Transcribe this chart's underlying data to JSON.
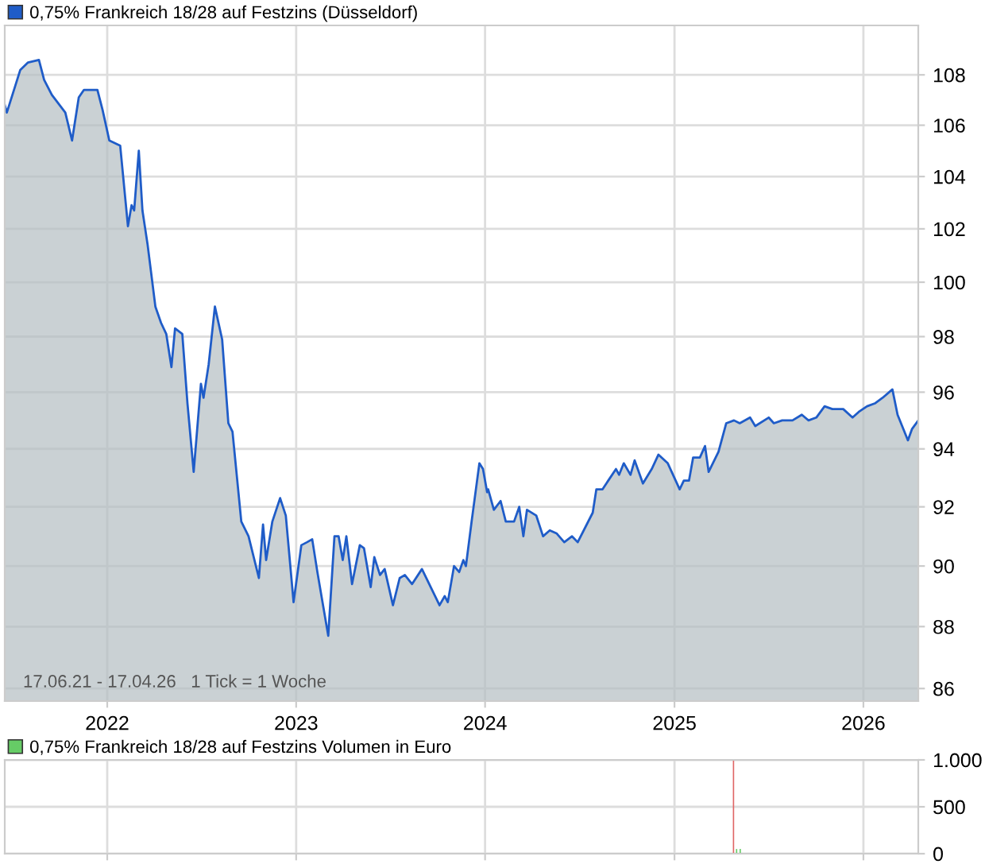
{
  "chart_data": [
    {
      "type": "area",
      "log": true,
      "grid": true,
      "legend": "top left",
      "xlim": [
        "2021-06-17",
        "2026-04-17"
      ],
      "xticks": [
        "2022",
        "2023",
        "2024",
        "2025",
        "2026"
      ],
      "ylim": [
        85.6,
        110
      ],
      "yticks": [
        86,
        88,
        90,
        92,
        94,
        96,
        98,
        100,
        102,
        104,
        106,
        108
      ],
      "annotations": [
        "17.06.21 - 17.04.26   1 Tick = 1 Woche"
      ],
      "series": [
        {
          "name": "0,75% Frankreich 18/28 auf Festzins (Düsseldorf)",
          "color": "#1f5cc8",
          "x": [
            "2021-06-17",
            "2021-06-21",
            "2021-07-17",
            "2021-08-01",
            "2021-08-22",
            "2021-09-01",
            "2021-09-16",
            "2021-10-12",
            "2021-10-25",
            "2021-11-07",
            "2021-11-17",
            "2021-12-13",
            "2021-12-23",
            "2022-01-05",
            "2022-01-26",
            "2022-02-10",
            "2022-02-17",
            "2022-02-22",
            "2022-03-03",
            "2022-03-10",
            "2022-03-20",
            "2022-04-04",
            "2022-04-15",
            "2022-04-25",
            "2022-05-05",
            "2022-05-12",
            "2022-05-26",
            "2022-06-05",
            "2022-06-17",
            "2022-07-01",
            "2022-07-06",
            "2022-07-16",
            "2022-07-28",
            "2022-08-11",
            "2022-08-23",
            "2022-08-31",
            "2022-09-17",
            "2022-10-01",
            "2022-10-21",
            "2022-10-29",
            "2022-11-04",
            "2022-11-16",
            "2022-12-01",
            "2022-12-12",
            "2022-12-27",
            "2023-01-11",
            "2023-01-22",
            "2023-02-01",
            "2023-02-11",
            "2023-03-04",
            "2023-03-16",
            "2023-03-24",
            "2023-04-01",
            "2023-04-08",
            "2023-04-19",
            "2023-05-04",
            "2023-05-12",
            "2023-05-25",
            "2023-06-01",
            "2023-06-12",
            "2023-06-21",
            "2023-07-07",
            "2023-07-20",
            "2023-07-30",
            "2023-08-13",
            "2023-09-01",
            "2023-10-05",
            "2023-10-15",
            "2023-10-21",
            "2023-11-02",
            "2023-11-12",
            "2023-11-20",
            "2023-11-25",
            "2023-12-06",
            "2023-12-21",
            "2023-12-28",
            "2024-01-05",
            "2024-01-07",
            "2024-01-18",
            "2024-01-31",
            "2024-02-10",
            "2024-02-26",
            "2024-03-07",
            "2024-03-15",
            "2024-03-22",
            "2024-04-09",
            "2024-04-22",
            "2024-05-05",
            "2024-05-18",
            "2024-06-02",
            "2024-06-17",
            "2024-06-28",
            "2024-07-27",
            "2024-08-03",
            "2024-08-15",
            "2024-08-26",
            "2024-09-10",
            "2024-09-16",
            "2024-09-25",
            "2024-10-08",
            "2024-10-16",
            "2024-11-01",
            "2024-11-18",
            "2024-12-01",
            "2024-12-19",
            "2025-01-11",
            "2025-01-19",
            "2025-01-29",
            "2025-02-06",
            "2025-02-19",
            "2025-03-01",
            "2025-03-08",
            "2025-03-27",
            "2025-04-11",
            "2025-04-26",
            "2025-05-07",
            "2025-05-27",
            "2025-06-06",
            "2025-07-02",
            "2025-07-12",
            "2025-07-28",
            "2025-08-17",
            "2025-09-04",
            "2025-09-17",
            "2025-10-02",
            "2025-10-18",
            "2025-11-02",
            "2025-11-23",
            "2025-12-11",
            "2025-12-23",
            "2026-01-08",
            "2026-01-23",
            "2026-02-07",
            "2026-02-26",
            "2026-03-08",
            "2026-03-28",
            "2026-04-05",
            "2026-04-17"
          ],
          "values": [
            106.8,
            106.5,
            108.2,
            108.5,
            108.6,
            107.8,
            107.2,
            106.5,
            105.4,
            107.1,
            107.4,
            107.4,
            106.6,
            105.4,
            105.2,
            102.1,
            102.9,
            102.7,
            105.0,
            102.7,
            101.4,
            99.1,
            98.5,
            98.1,
            96.9,
            98.3,
            98.1,
            95.6,
            93.2,
            96.3,
            95.8,
            97.0,
            99.1,
            97.9,
            94.9,
            94.6,
            91.5,
            91.0,
            89.6,
            91.4,
            90.2,
            91.5,
            92.3,
            91.7,
            88.8,
            90.7,
            90.8,
            90.9,
            89.8,
            87.7,
            91.0,
            91.0,
            90.2,
            91.0,
            89.4,
            90.7,
            90.6,
            89.3,
            90.3,
            89.7,
            89.9,
            88.7,
            89.6,
            89.7,
            89.4,
            89.9,
            88.7,
            89.0,
            88.8,
            90.0,
            89.8,
            90.2,
            90.0,
            91.5,
            93.5,
            93.3,
            92.5,
            92.6,
            91.9,
            92.2,
            91.5,
            91.5,
            92.0,
            91.0,
            91.9,
            91.7,
            91.0,
            91.2,
            91.1,
            90.8,
            91.0,
            90.8,
            91.8,
            92.6,
            92.6,
            92.9,
            93.3,
            93.1,
            93.5,
            93.1,
            93.6,
            92.8,
            93.3,
            93.8,
            93.5,
            92.6,
            92.9,
            92.9,
            93.7,
            93.7,
            94.1,
            93.2,
            93.9,
            94.9,
            95.0,
            94.9,
            95.1,
            94.8,
            95.1,
            94.9,
            95.0,
            95.0,
            95.2,
            95.0,
            95.1,
            95.5,
            95.4,
            95.4,
            95.1,
            95.3,
            95.5,
            95.6,
            95.8,
            96.1,
            95.2,
            94.3,
            94.7,
            95.0
          ]
        }
      ]
    },
    {
      "type": "bar",
      "grid": true,
      "legend": "top left",
      "tick_labels": "y",
      "xlim": [
        "2021-06-17",
        "2026-04-17"
      ],
      "xticks": [
        "2022",
        "2023",
        "2024",
        "2025",
        "2026"
      ],
      "ylim": [
        0,
        1000
      ],
      "yticks": [
        0,
        500,
        {
          "value": 1000,
          "label": "1.000"
        }
      ],
      "series": [
        {
          "name": "0,75% Frankreich 18/28 auf Festzins Volumen in Euro",
          "color": "#66cc66",
          "x": [
            "2025-04-25",
            "2025-05-01",
            "2025-05-08"
          ],
          "values": [
            1000,
            50,
            50
          ],
          "colors": [
            "#e06666",
            "#66cc66",
            "#66cc66"
          ]
        }
      ]
    }
  ]
}
